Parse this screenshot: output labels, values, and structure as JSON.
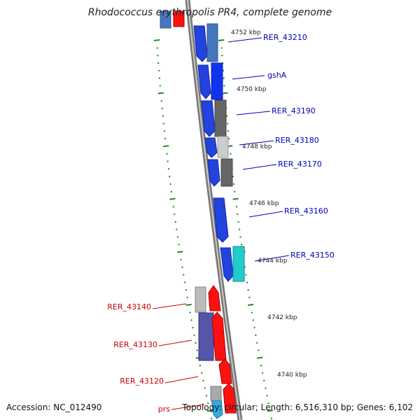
{
  "title": "Rhodococcus erythropolis PR4, complete genome",
  "footer": {
    "accession": "Accession: NC_012490",
    "summary": "Topology: circular; Length: 6,516,310 bp; Genes: 6,102"
  },
  "colors": {
    "forward_label": "#0000bb",
    "reverse_label": "#cc0000",
    "tick": "#228822",
    "backbone": "#888888"
  },
  "scale_labels": [
    {
      "text": "4752 kbp",
      "kbp": 4752
    },
    {
      "text": "4750 kbp",
      "kbp": 4750
    },
    {
      "text": "4748 kbp",
      "kbp": 4748
    },
    {
      "text": "4746 kbp",
      "kbp": 4746
    },
    {
      "text": "4744 kbp",
      "kbp": 4744
    },
    {
      "text": "4742 kbp",
      "kbp": 4742
    },
    {
      "text": "4740 kbp",
      "kbp": 4740
    }
  ],
  "gene_labels": [
    {
      "text": "RER_43210",
      "strand": "forward"
    },
    {
      "text": "gshA",
      "strand": "forward"
    },
    {
      "text": "RER_43190",
      "strand": "forward"
    },
    {
      "text": "RER_43180",
      "strand": "forward"
    },
    {
      "text": "RER_43170",
      "strand": "forward"
    },
    {
      "text": "RER_43160",
      "strand": "forward"
    },
    {
      "text": "RER_43150",
      "strand": "forward"
    },
    {
      "text": "RER_43140",
      "strand": "reverse"
    },
    {
      "text": "RER_43130",
      "strand": "reverse"
    },
    {
      "text": "RER_43120",
      "strand": "reverse"
    },
    {
      "text": "prs",
      "strand": "reverse"
    }
  ]
}
